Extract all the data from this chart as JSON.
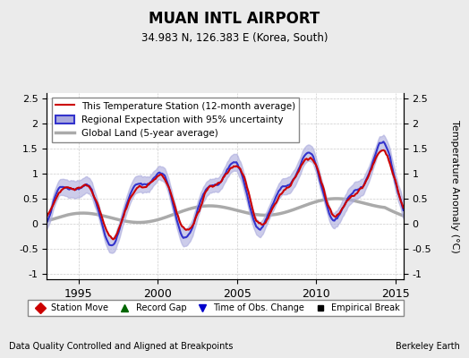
{
  "title": "MUAN INTL AIRPORT",
  "subtitle": "34.983 N, 126.383 E (Korea, South)",
  "ylabel": "Temperature Anomaly (°C)",
  "footer_left": "Data Quality Controlled and Aligned at Breakpoints",
  "footer_right": "Berkeley Earth",
  "xlim": [
    1993.0,
    2015.5
  ],
  "ylim": [
    -1.1,
    2.6
  ],
  "yticks": [
    -1,
    -0.5,
    0,
    0.5,
    1,
    1.5,
    2,
    2.5
  ],
  "xticks": [
    1995,
    2000,
    2005,
    2010,
    2015
  ],
  "legend_items": [
    {
      "label": "This Temperature Station (12-month average)",
      "color": "#cc0000",
      "lw": 1.5
    },
    {
      "label": "Regional Expectation with 95% uncertainty",
      "color": "#3333cc",
      "lw": 1.5
    },
    {
      "label": "Global Land (5-year average)",
      "color": "#aaaaaa",
      "lw": 2.5
    }
  ],
  "marker_legend": [
    {
      "label": "Station Move",
      "marker": "D",
      "color": "#cc0000",
      "ms": 6
    },
    {
      "label": "Record Gap",
      "marker": "^",
      "color": "#006600",
      "ms": 6
    },
    {
      "label": "Time of Obs. Change",
      "marker": "v",
      "color": "#0000cc",
      "ms": 6
    },
    {
      "label": "Empirical Break",
      "marker": "s",
      "color": "#000000",
      "ms": 5
    }
  ],
  "bg_color": "#ebebeb",
  "plot_bg_color": "#ffffff",
  "grid_color": "#cccccc",
  "regional_fill_color": "#aaaadd",
  "regional_line_color": "#3333cc",
  "station_line_color": "#cc0000",
  "global_line_color": "#aaaaaa"
}
